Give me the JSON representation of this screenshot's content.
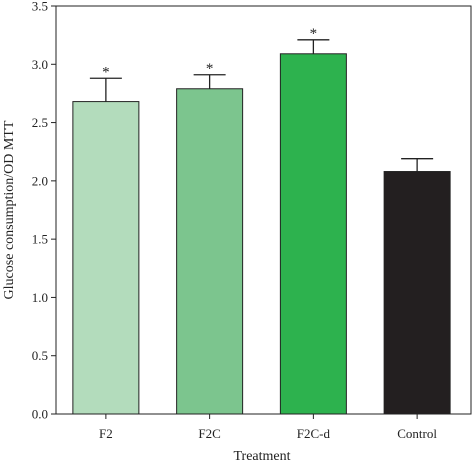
{
  "chart_data": {
    "type": "bar",
    "xlabel": "Treatment",
    "ylabel": "Glucose consumption/OD MTT",
    "ylim": [
      0,
      3.5
    ],
    "yticks": [
      "0.0",
      "0.5",
      "1.0",
      "1.5",
      "2.0",
      "2.5",
      "3.0",
      "3.5"
    ],
    "categories": [
      "F2",
      "F2C",
      "F2C-d",
      "Control"
    ],
    "values": [
      2.68,
      2.79,
      3.09,
      2.08
    ],
    "errors": [
      0.2,
      0.12,
      0.12,
      0.11
    ],
    "significance": [
      "*",
      "*",
      "*",
      ""
    ],
    "colors": [
      "#b3dcbc",
      "#7cc58e",
      "#2db24e",
      "#231f20"
    ],
    "grid": false,
    "legend": "none"
  }
}
